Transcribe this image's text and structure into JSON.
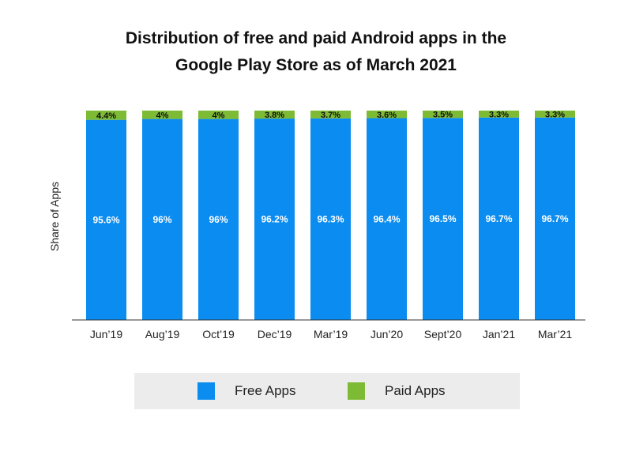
{
  "chart_data": {
    "type": "bar",
    "stacked": true,
    "title_lines": [
      "Distribution of free and paid Android apps in the",
      "Google Play Store as of March 2021"
    ],
    "ylabel": "Share of Apps",
    "xlabel": "",
    "ylim": [
      0,
      100
    ],
    "grid": false,
    "legend_position": "bottom",
    "categories": [
      "Jun’19",
      "Aug’19",
      "Oct’19",
      "Dec’19",
      "Mar’19",
      "Jun’20",
      "Sept’20",
      "Jan’21",
      "Mar’21"
    ],
    "series": [
      {
        "name": "Free Apps",
        "color": "#0a8cf0",
        "values": [
          95.6,
          96,
          96,
          96.2,
          96.3,
          96.4,
          96.5,
          96.7,
          96.7
        ],
        "labels": [
          "95.6%",
          "96%",
          "96%",
          "96.2%",
          "96.3%",
          "96.4%",
          "96.5%",
          "96.7%",
          "96.7%"
        ]
      },
      {
        "name": "Paid Apps",
        "color": "#7dbb34",
        "values": [
          4.4,
          4,
          4,
          3.8,
          3.7,
          3.6,
          3.5,
          3.3,
          3.3
        ],
        "labels": [
          "4.4%",
          "4%",
          "4%",
          "3.8%",
          "3.7%",
          "3.6%",
          "3.5%",
          "3.3%",
          "3.3%"
        ]
      }
    ]
  }
}
